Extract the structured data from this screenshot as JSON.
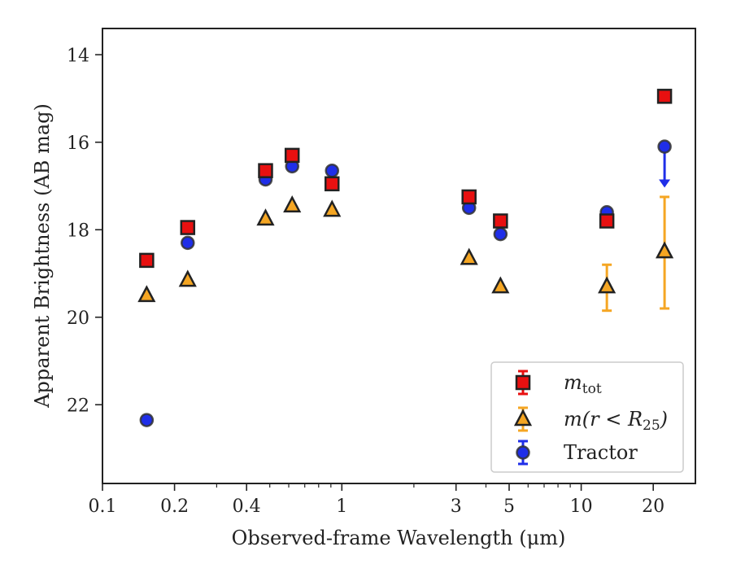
{
  "chart_data": {
    "type": "scatter",
    "xlabel": "Observed-frame Wavelength (μm)",
    "ylabel": "Apparent Brightness (AB mag)",
    "xscale": "log",
    "yinverted": true,
    "xlim": [
      0.1,
      30
    ],
    "ylim": [
      23.8,
      13.4
    ],
    "xticks": [
      {
        "value": 0.1,
        "label": "0.1"
      },
      {
        "value": 0.2,
        "label": "0.2"
      },
      {
        "value": 0.4,
        "label": "0.4"
      },
      {
        "value": 1,
        "label": "1"
      },
      {
        "value": 3,
        "label": "3"
      },
      {
        "value": 5,
        "label": "5"
      },
      {
        "value": 10,
        "label": "10"
      },
      {
        "value": 20,
        "label": "20"
      }
    ],
    "yticks": [
      {
        "value": 14,
        "label": "14"
      },
      {
        "value": 16,
        "label": "16"
      },
      {
        "value": 18,
        "label": "18"
      },
      {
        "value": 20,
        "label": "20"
      },
      {
        "value": 22,
        "label": "22"
      }
    ],
    "grid": false,
    "legend_position": "lower-right",
    "series": [
      {
        "name": "m_tot",
        "marker": "square",
        "color": "#e81010",
        "edge": "#222222",
        "points": [
          {
            "x": 0.153,
            "y": 18.7
          },
          {
            "x": 0.227,
            "y": 17.95
          },
          {
            "x": 0.48,
            "y": 16.65
          },
          {
            "x": 0.62,
            "y": 16.3
          },
          {
            "x": 0.91,
            "y": 16.95
          },
          {
            "x": 3.4,
            "y": 17.25
          },
          {
            "x": 4.6,
            "y": 17.8
          },
          {
            "x": 12.8,
            "y": 17.8
          },
          {
            "x": 22.3,
            "y": 14.95
          }
        ]
      },
      {
        "name": "m(r<R25)",
        "marker": "triangle",
        "color": "#f5a623",
        "edge": "#222222",
        "points": [
          {
            "x": 0.153,
            "y": 19.5
          },
          {
            "x": 0.227,
            "y": 19.15
          },
          {
            "x": 0.48,
            "y": 17.75
          },
          {
            "x": 0.62,
            "y": 17.45
          },
          {
            "x": 0.91,
            "y": 17.55
          },
          {
            "x": 3.4,
            "y": 18.65
          },
          {
            "x": 4.6,
            "y": 19.3
          },
          {
            "x": 12.8,
            "y": 19.3,
            "err_low": 18.8,
            "err_high": 19.85
          },
          {
            "x": 22.3,
            "y": 18.5,
            "err_low": 17.25,
            "err_high": 19.8
          }
        ]
      },
      {
        "name": "Tractor",
        "marker": "circle",
        "color": "#1f2ee8",
        "edge": "#333333",
        "points": [
          {
            "x": 0.153,
            "y": 22.35
          },
          {
            "x": 0.227,
            "y": 18.3
          },
          {
            "x": 0.48,
            "y": 16.85
          },
          {
            "x": 0.62,
            "y": 16.55
          },
          {
            "x": 0.91,
            "y": 16.65
          },
          {
            "x": 3.4,
            "y": 17.5
          },
          {
            "x": 4.6,
            "y": 18.1
          },
          {
            "x": 12.8,
            "y": 17.6
          },
          {
            "x": 22.3,
            "y": 16.1,
            "upper_limit_to": 17.0
          }
        ]
      }
    ],
    "legend": [
      {
        "marker": "square",
        "label_main": "m",
        "label_sub": "tot",
        "label_rest": ""
      },
      {
        "marker": "triangle",
        "label_main": "m(r < R",
        "label_sub": "25",
        "label_rest": ")"
      },
      {
        "marker": "circle",
        "label_main": "Tractor",
        "label_sub": "",
        "label_rest": ""
      }
    ]
  }
}
